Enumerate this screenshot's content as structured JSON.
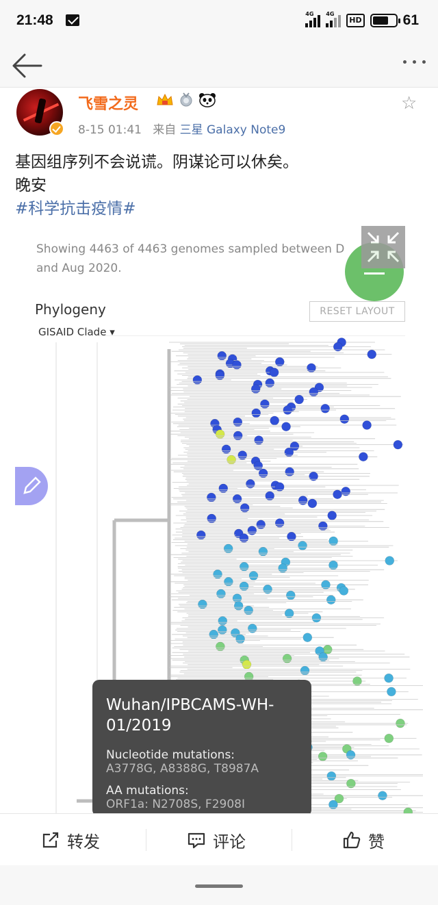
{
  "status_bar": {
    "time": "21:48",
    "network_1": "4G",
    "network_2": "4G",
    "hd_label": "HD",
    "battery_level": "61"
  },
  "nav": {
    "back_icon": "back-arrow-icon",
    "more_icon": "more-dots-icon"
  },
  "post": {
    "author": "飞雪之灵",
    "timestamp": "8-15 01:41",
    "source_prefix": "来自",
    "device": "三星 Galaxy Note9",
    "text_line1": "基因组序列不会说谎。阴谋论可以休矣。",
    "text_line2": "晚安",
    "hashtag": "#科学抗击疫情#"
  },
  "image": {
    "header_line1": "Showing 4463 of 4463 genomes sampled between D",
    "header_line2": "and Aug 2020.",
    "phylogeny_title": "Phylogeny",
    "clade_select": "GISAID Clade",
    "reset_layout": "RESET LAYOUT",
    "tooltip": {
      "strain_line1": "Wuhan/IPBCAMS-WH-",
      "strain_line2": "01/2019",
      "nucleotide_label": "Nucleotide mutations:",
      "nucleotide_value": "A3778G, A8388G, T8987A",
      "aa_label": "AA mutations:",
      "aa_value": "ORF1a: N2708S, F2908I"
    },
    "colors": {
      "clade_blue": "#3050d8",
      "clade_cyan": "#45b0dc",
      "clade_green": "#7fd080",
      "clade_yellow": "#d4e84a"
    }
  },
  "actions": {
    "repost": "转发",
    "comment": "评论",
    "like": "赞"
  }
}
